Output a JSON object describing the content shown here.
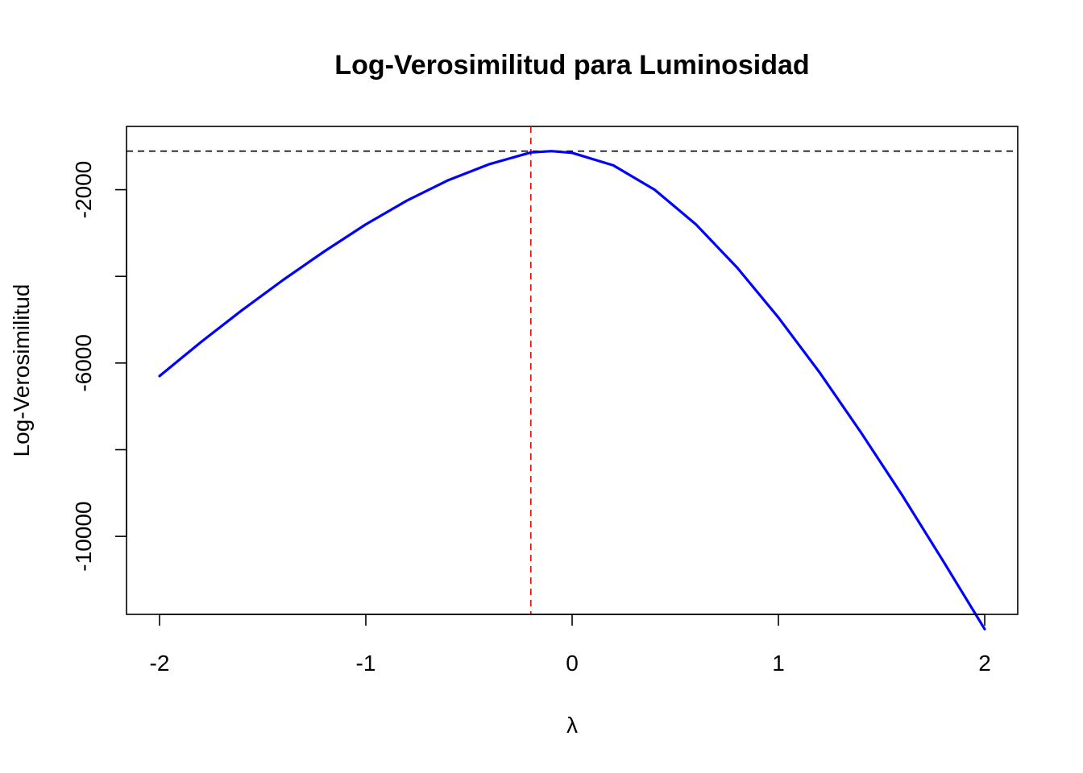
{
  "chart_data": {
    "type": "line",
    "title": "Log-Verosimilitud para Luminosidad",
    "xlabel": "λ",
    "ylabel": "Log-Verosimilitud",
    "xlim": [
      -2.16,
      2.16
    ],
    "ylim": [
      -11800,
      -540
    ],
    "x_ticks": [
      -2,
      -1,
      0,
      1,
      2
    ],
    "x_tick_labels": [
      "-2",
      "-1",
      "0",
      "1",
      "2"
    ],
    "y_ticks": [
      -2000,
      -4000,
      -6000,
      -8000,
      -10000
    ],
    "y_tick_labels": [
      "-2000",
      "",
      "-6000",
      "",
      "-10000"
    ],
    "grid": false,
    "series": [
      {
        "color": "#0000ff",
        "x": [
          -2.0,
          -1.8,
          -1.6,
          -1.4,
          -1.2,
          -1.0,
          -0.8,
          -0.6,
          -0.4,
          -0.2,
          -0.1,
          0.0,
          0.2,
          0.4,
          0.6,
          0.8,
          1.0,
          1.2,
          1.4,
          1.6,
          1.8,
          2.0
        ],
        "y": [
          -6300,
          -5520,
          -4780,
          -4080,
          -3420,
          -2800,
          -2250,
          -1780,
          -1410,
          -1140,
          -1110,
          -1150,
          -1440,
          -2000,
          -2800,
          -3800,
          -4950,
          -6220,
          -7600,
          -9050,
          -10580,
          -12140
        ]
      }
    ],
    "reference_lines": [
      {
        "orientation": "horizontal",
        "value": -1110,
        "color": "#000000",
        "style": "dashed"
      },
      {
        "orientation": "vertical",
        "value": -0.2,
        "color": "#ff0000",
        "style": "dashed"
      }
    ]
  }
}
